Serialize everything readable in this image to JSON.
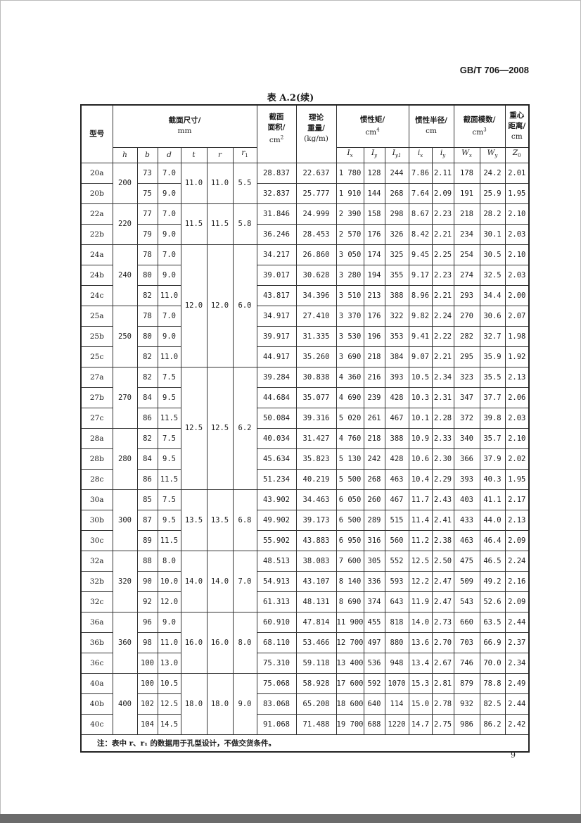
{
  "header": {
    "standard_code": "GB/T 706—2008"
  },
  "table_title": "表 A.2(续)",
  "page_number": "9",
  "columns": {
    "model": "型号",
    "section_dims": {
      "label": "截面尺寸/",
      "unit": "mm"
    },
    "area": {
      "l1": "截面",
      "l2": "面积/",
      "unit": "cm",
      "exp": "2"
    },
    "weight": {
      "l1": "理论",
      "l2": "重量/",
      "unit": "(kg/m)"
    },
    "inertia": {
      "label": "惯性矩/",
      "unit": "cm",
      "exp": "4"
    },
    "gyration": {
      "label": "惯性半径/",
      "unit": "cm"
    },
    "modulus": {
      "label": "截面模数/",
      "unit": "cm",
      "exp": "3"
    },
    "centroid": {
      "l1": "重心",
      "l2": "距离/",
      "unit": "cm"
    },
    "sub": [
      {
        "s": "h",
        "i": ""
      },
      {
        "s": "b",
        "i": ""
      },
      {
        "s": "d",
        "i": ""
      },
      {
        "s": "t",
        "i": ""
      },
      {
        "s": "r",
        "i": ""
      },
      {
        "s": "r",
        "i": "1"
      },
      {
        "s": "I",
        "i": "x"
      },
      {
        "s": "I",
        "i": "y"
      },
      {
        "s": "I",
        "i": "y1"
      },
      {
        "s": "i",
        "i": "x"
      },
      {
        "s": "i",
        "i": "y"
      },
      {
        "s": "W",
        "i": "x"
      },
      {
        "s": "W",
        "i": "y"
      },
      {
        "s": "Z",
        "i": "0"
      }
    ]
  },
  "h_groups": [
    [
      "200",
      2
    ],
    [
      "220",
      2
    ],
    [
      "240",
      3
    ],
    [
      "250",
      3
    ],
    [
      "270",
      3
    ],
    [
      "280",
      3
    ],
    [
      "300",
      3
    ],
    [
      "320",
      3
    ],
    [
      "360",
      3
    ],
    [
      "400",
      3
    ]
  ],
  "trr1_groups": [
    [
      [
        "11.0",
        "11.0",
        "5.5"
      ],
      2
    ],
    [
      [
        "11.5",
        "11.5",
        "5.8"
      ],
      2
    ],
    [
      [
        "12.0",
        "12.0",
        "6.0"
      ],
      6
    ],
    [
      [
        "12.5",
        "12.5",
        "6.2"
      ],
      6
    ],
    [
      [
        "13.5",
        "13.5",
        "6.8"
      ],
      3
    ],
    [
      [
        "14.0",
        "14.0",
        "7.0"
      ],
      3
    ],
    [
      [
        "16.0",
        "16.0",
        "8.0"
      ],
      3
    ],
    [
      [
        "18.0",
        "18.0",
        "9.0"
      ],
      3
    ]
  ],
  "rows": [
    [
      "20a",
      "73",
      "7.0",
      "28.837",
      "22.637",
      "1 780",
      "128",
      "244",
      "7.86",
      "2.11",
      "178",
      "24.2",
      "2.01"
    ],
    [
      "20b",
      "75",
      "9.0",
      "32.837",
      "25.777",
      "1 910",
      "144",
      "268",
      "7.64",
      "2.09",
      "191",
      "25.9",
      "1.95"
    ],
    [
      "22a",
      "77",
      "7.0",
      "31.846",
      "24.999",
      "2 390",
      "158",
      "298",
      "8.67",
      "2.23",
      "218",
      "28.2",
      "2.10"
    ],
    [
      "22b",
      "79",
      "9.0",
      "36.246",
      "28.453",
      "2 570",
      "176",
      "326",
      "8.42",
      "2.21",
      "234",
      "30.1",
      "2.03"
    ],
    [
      "24a",
      "78",
      "7.0",
      "34.217",
      "26.860",
      "3 050",
      "174",
      "325",
      "9.45",
      "2.25",
      "254",
      "30.5",
      "2.10"
    ],
    [
      "24b",
      "80",
      "9.0",
      "39.017",
      "30.628",
      "3 280",
      "194",
      "355",
      "9.17",
      "2.23",
      "274",
      "32.5",
      "2.03"
    ],
    [
      "24c",
      "82",
      "11.0",
      "43.817",
      "34.396",
      "3 510",
      "213",
      "388",
      "8.96",
      "2.21",
      "293",
      "34.4",
      "2.00"
    ],
    [
      "25a",
      "78",
      "7.0",
      "34.917",
      "27.410",
      "3 370",
      "176",
      "322",
      "9.82",
      "2.24",
      "270",
      "30.6",
      "2.07"
    ],
    [
      "25b",
      "80",
      "9.0",
      "39.917",
      "31.335",
      "3 530",
      "196",
      "353",
      "9.41",
      "2.22",
      "282",
      "32.7",
      "1.98"
    ],
    [
      "25c",
      "82",
      "11.0",
      "44.917",
      "35.260",
      "3 690",
      "218",
      "384",
      "9.07",
      "2.21",
      "295",
      "35.9",
      "1.92"
    ],
    [
      "27a",
      "82",
      "7.5",
      "39.284",
      "30.838",
      "4 360",
      "216",
      "393",
      "10.5",
      "2.34",
      "323",
      "35.5",
      "2.13"
    ],
    [
      "27b",
      "84",
      "9.5",
      "44.684",
      "35.077",
      "4 690",
      "239",
      "428",
      "10.3",
      "2.31",
      "347",
      "37.7",
      "2.06"
    ],
    [
      "27c",
      "86",
      "11.5",
      "50.084",
      "39.316",
      "5 020",
      "261",
      "467",
      "10.1",
      "2.28",
      "372",
      "39.8",
      "2.03"
    ],
    [
      "28a",
      "82",
      "7.5",
      "40.034",
      "31.427",
      "4 760",
      "218",
      "388",
      "10.9",
      "2.33",
      "340",
      "35.7",
      "2.10"
    ],
    [
      "28b",
      "84",
      "9.5",
      "45.634",
      "35.823",
      "5 130",
      "242",
      "428",
      "10.6",
      "2.30",
      "366",
      "37.9",
      "2.02"
    ],
    [
      "28c",
      "86",
      "11.5",
      "51.234",
      "40.219",
      "5 500",
      "268",
      "463",
      "10.4",
      "2.29",
      "393",
      "40.3",
      "1.95"
    ],
    [
      "30a",
      "85",
      "7.5",
      "43.902",
      "34.463",
      "6 050",
      "260",
      "467",
      "11.7",
      "2.43",
      "403",
      "41.1",
      "2.17"
    ],
    [
      "30b",
      "87",
      "9.5",
      "49.902",
      "39.173",
      "6 500",
      "289",
      "515",
      "11.4",
      "2.41",
      "433",
      "44.0",
      "2.13"
    ],
    [
      "30c",
      "89",
      "11.5",
      "55.902",
      "43.883",
      "6 950",
      "316",
      "560",
      "11.2",
      "2.38",
      "463",
      "46.4",
      "2.09"
    ],
    [
      "32a",
      "88",
      "8.0",
      "48.513",
      "38.083",
      "7 600",
      "305",
      "552",
      "12.5",
      "2.50",
      "475",
      "46.5",
      "2.24"
    ],
    [
      "32b",
      "90",
      "10.0",
      "54.913",
      "43.107",
      "8 140",
      "336",
      "593",
      "12.2",
      "2.47",
      "509",
      "49.2",
      "2.16"
    ],
    [
      "32c",
      "92",
      "12.0",
      "61.313",
      "48.131",
      "8 690",
      "374",
      "643",
      "11.9",
      "2.47",
      "543",
      "52.6",
      "2.09"
    ],
    [
      "36a",
      "96",
      "9.0",
      "60.910",
      "47.814",
      "11 900",
      "455",
      "818",
      "14.0",
      "2.73",
      "660",
      "63.5",
      "2.44"
    ],
    [
      "36b",
      "98",
      "11.0",
      "68.110",
      "53.466",
      "12 700",
      "497",
      "880",
      "13.6",
      "2.70",
      "703",
      "66.9",
      "2.37"
    ],
    [
      "36c",
      "100",
      "13.0",
      "75.310",
      "59.118",
      "13 400",
      "536",
      "948",
      "13.4",
      "2.67",
      "746",
      "70.0",
      "2.34"
    ],
    [
      "40a",
      "100",
      "10.5",
      "75.068",
      "58.928",
      "17 600",
      "592",
      "1070",
      "15.3",
      "2.81",
      "879",
      "78.8",
      "2.49"
    ],
    [
      "40b",
      "102",
      "12.5",
      "83.068",
      "65.208",
      "18 600",
      "640",
      "114",
      "15.0",
      "2.78",
      "932",
      "82.5",
      "2.44"
    ],
    [
      "40c",
      "104",
      "14.5",
      "91.068",
      "71.488",
      "19 700",
      "688",
      "1220",
      "14.7",
      "2.75",
      "986",
      "86.2",
      "2.42"
    ]
  ],
  "note": "注：表中 r、r₁ 的数据用于孔型设计，不做交货条件。"
}
